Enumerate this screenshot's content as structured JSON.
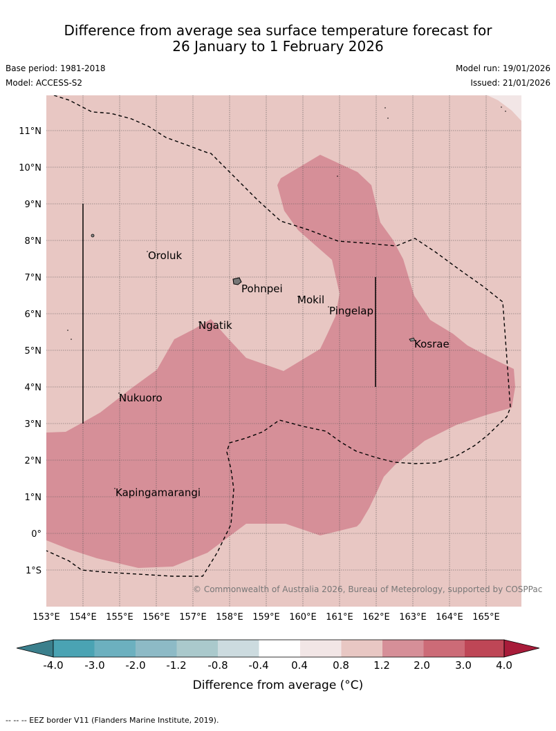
{
  "title": {
    "line1": "Difference from average sea surface temperature forecast for",
    "line2": "26 January to 1 February 2026"
  },
  "meta": {
    "base_period": "Base period: 1981-2018",
    "model": "Model: ACCESS-S2",
    "model_run": "Model run: 19/01/2026",
    "issued": "Issued: 21/01/2026"
  },
  "map": {
    "lat_labels": [
      "11°N",
      "10°N",
      "9°N",
      "8°N",
      "7°N",
      "6°N",
      "5°N",
      "4°N",
      "3°N",
      "2°N",
      "1°N",
      "0°",
      "1°S"
    ],
    "lon_labels": [
      "153°E",
      "154°E",
      "155°E",
      "156°E",
      "157°E",
      "158°E",
      "159°E",
      "160°E",
      "161°E",
      "162°E",
      "163°E",
      "164°E",
      "165°E"
    ],
    "places": {
      "oroluk": "Oroluk",
      "pohnpei": "Pohnpei",
      "mokil": "Mokil",
      "pingelap": "Pingelap",
      "ngatik": "Ngatik",
      "kosrae": "Kosrae",
      "nukuoro": "Nukuoro",
      "kapingamarangi": "Kapingamarangi"
    },
    "copyright": "© Commonwealth of Australia 2026, Bureau of Meteorology, supported by COSPPac",
    "colors": {
      "anom_0_4_0_8": "#f2e6e6",
      "anom_0_8_1_2": "#e8c7c3",
      "anom_1_2_2_0": "#d68f98"
    }
  },
  "colorbar": {
    "labels": [
      "-4.0",
      "-3.0",
      "-2.0",
      "-1.2",
      "-0.8",
      "-0.4",
      "0.4",
      "0.8",
      "1.2",
      "2.0",
      "3.0",
      "4.0"
    ],
    "colors": [
      "#3b7f8c",
      "#4aa3b3",
      "#6cb0bf",
      "#8dbac6",
      "#aac9cc",
      "#ccdbdf",
      "#ffffff",
      "#f2e6e6",
      "#e8c7c3",
      "#d68f98",
      "#cc6b77",
      "#be4656",
      "#a81c3a"
    ],
    "title": "Difference from average (°C)"
  },
  "footer": "--  --  -- EEZ border V11 (Flanders Marine Institute, 2019)."
}
